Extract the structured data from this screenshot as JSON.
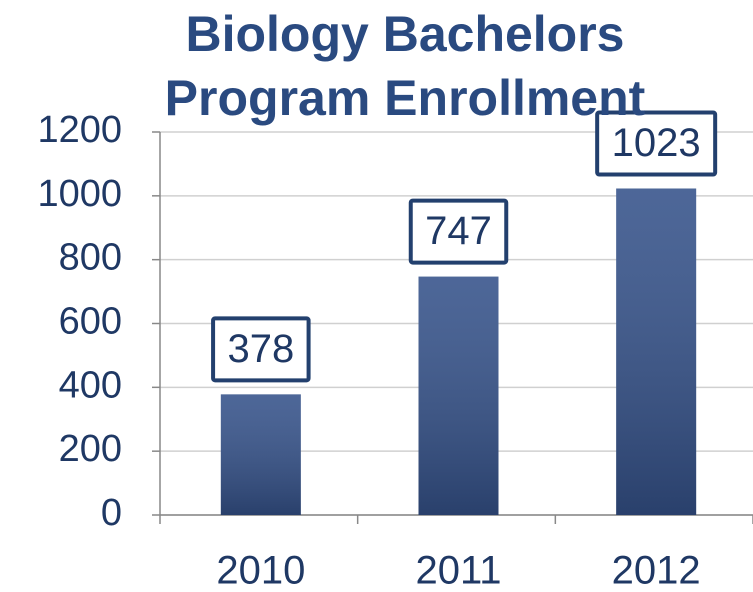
{
  "chart_data": {
    "type": "bar",
    "title": "Biology Bachelors Program Enrollment",
    "categories": [
      "2010",
      "2011",
      "2012"
    ],
    "values": [
      378,
      747,
      1023
    ],
    "color": "#35528a",
    "ylim": [
      0,
      1200
    ],
    "yticks": [
      0,
      200,
      400,
      600,
      800,
      1000,
      1200
    ],
    "grid": true
  }
}
